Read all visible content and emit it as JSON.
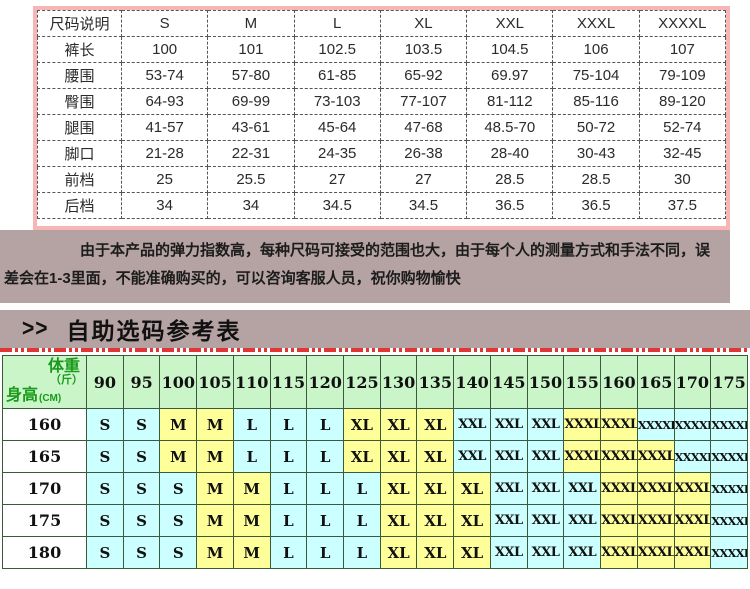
{
  "colors": {
    "pink_border": "#f6b6b6",
    "mauve_background": "#b5a2a2",
    "grid_green": "#3a5a3a",
    "header_green": "#c9f5c9",
    "cell_cyan": "#ccffff",
    "cell_yellow": "#ffff99",
    "green_text": "#1a9a1a",
    "red_dash": "#e03636"
  },
  "size_table": {
    "header": [
      "尺码说明",
      "S",
      "M",
      "L",
      "XL",
      "XXL",
      "XXXL",
      "XXXXL"
    ],
    "rows": [
      {
        "label": "裤长",
        "values": [
          "100",
          "101",
          "102.5",
          "103.5",
          "104.5",
          "106",
          "107"
        ]
      },
      {
        "label": "腰围",
        "values": [
          "53-74",
          "57-80",
          "61-85",
          "65-92",
          "69.97",
          "75-104",
          "79-109"
        ]
      },
      {
        "label": "臀围",
        "values": [
          "64-93",
          "69-99",
          "73-103",
          "77-107",
          "81-112",
          "85-116",
          "89-120"
        ]
      },
      {
        "label": "腿围",
        "values": [
          "41-57",
          "43-61",
          "45-64",
          "47-68",
          "48.5-70",
          "50-72",
          "52-74"
        ]
      },
      {
        "label": "脚口",
        "values": [
          "21-28",
          "22-31",
          "24-35",
          "26-38",
          "28-40",
          "30-43",
          "32-45"
        ]
      },
      {
        "label": "前档",
        "values": [
          "25",
          "25.5",
          "27",
          "27",
          "28.5",
          "28.5",
          "30"
        ]
      },
      {
        "label": "后档",
        "values": [
          "34",
          "34",
          "34.5",
          "34.5",
          "36.5",
          "36.5",
          "37.5"
        ]
      }
    ]
  },
  "note": {
    "lines": [
      "由于本产品的弹力指数高，每种尺码可接受的范围也大，由于每个人的测量方式和手法不同，误",
      "差会在1-3里面，不能准确购买的，可以咨询客服人员，祝你购物愉快"
    ]
  },
  "section_title": {
    "symbol": ">>",
    "text": "自助选码参考表"
  },
  "reference_table": {
    "corner": {
      "top_label": "体重",
      "top_unit": "（斤）",
      "bottom_label": "身高",
      "bottom_unit": "(CM)"
    },
    "weights": [
      "90",
      "95",
      "100",
      "105",
      "110",
      "115",
      "120",
      "125",
      "130",
      "135",
      "140",
      "145",
      "150",
      "155",
      "160",
      "165",
      "170",
      "175"
    ],
    "rows": [
      {
        "height": "160",
        "sizes": [
          "S",
          "S",
          "M",
          "M",
          "L",
          "L",
          "L",
          "XL",
          "XL",
          "XL",
          "XXL",
          "XXL",
          "XXL",
          "XXXL",
          "XXXL",
          "XXXXL",
          "XXXXL",
          "XXXXL"
        ]
      },
      {
        "height": "165",
        "sizes": [
          "S",
          "S",
          "M",
          "M",
          "L",
          "L",
          "L",
          "XL",
          "XL",
          "XL",
          "XXL",
          "XXL",
          "XXL",
          "XXXL",
          "XXXL",
          "XXXL",
          "XXXXL",
          "XXXXL"
        ]
      },
      {
        "height": "170",
        "sizes": [
          "S",
          "S",
          "S",
          "M",
          "M",
          "L",
          "L",
          "L",
          "XL",
          "XL",
          "XL",
          "XXL",
          "XXL",
          "XXL",
          "XXXL",
          "XXXL",
          "XXXL",
          "XXXXL"
        ]
      },
      {
        "height": "175",
        "sizes": [
          "S",
          "S",
          "S",
          "M",
          "M",
          "L",
          "L",
          "L",
          "XL",
          "XL",
          "XL",
          "XXL",
          "XXL",
          "XXL",
          "XXXL",
          "XXXL",
          "XXXL",
          "XXXXL"
        ]
      },
      {
        "height": "180",
        "sizes": [
          "S",
          "S",
          "S",
          "M",
          "M",
          "L",
          "L",
          "L",
          "XL",
          "XL",
          "XL",
          "XXL",
          "XXL",
          "XXL",
          "XXXL",
          "XXXL",
          "XXXL",
          "XXXXL"
        ]
      }
    ],
    "size_colors": {
      "S": "#ccffff",
      "M": "#ffff99",
      "L": "#ccffff",
      "XL": "#ffff99",
      "XXL": "#ccffff",
      "XXXL": "#ffff99",
      "XXXXL": "#ccffff"
    }
  }
}
